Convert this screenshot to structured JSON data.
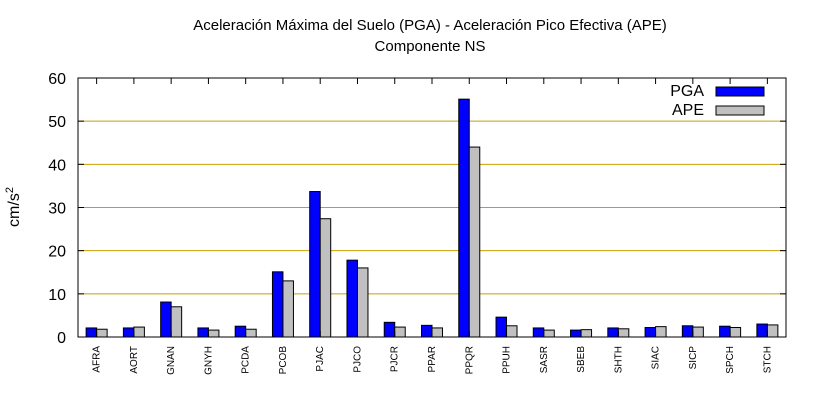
{
  "chart_data": {
    "type": "bar",
    "title": [
      "Aceleración Máxima del Suelo (PGA) -  Aceleración Pico Efectiva (APE)",
      "Componente NS"
    ],
    "ylabel": "cm/s",
    "ylabel_superscript": "2",
    "xlabel": "",
    "ylim": [
      0,
      60
    ],
    "yticks": [
      "0",
      "10",
      "20",
      "30",
      "40",
      "50",
      "60"
    ],
    "grid": "horizontal",
    "legend_position": "top-right",
    "categories": [
      "AFRA",
      "AORT",
      "GNAN",
      "GNYH",
      "PCDA",
      "PCOB",
      "PJAC",
      "PJCO",
      "PJCR",
      "PPAR",
      "PPQR",
      "PPUH",
      "SASR",
      "SBEB",
      "SHTH",
      "SIAC",
      "SICP",
      "SPCH",
      "STCH"
    ],
    "series": [
      {
        "name": "PGA",
        "color": "#0000ff",
        "values": [
          2.1,
          2.1,
          8.1,
          2.1,
          2.5,
          15.1,
          33.7,
          17.8,
          3.4,
          2.7,
          55.1,
          4.6,
          2.1,
          1.6,
          2.1,
          2.2,
          2.6,
          2.5,
          3.0
        ]
      },
      {
        "name": "APE",
        "color": "#c0c0c0",
        "values": [
          1.8,
          2.3,
          7.0,
          1.6,
          1.8,
          13.0,
          27.4,
          16.0,
          2.3,
          2.1,
          44.0,
          2.6,
          1.6,
          1.7,
          1.9,
          2.4,
          2.3,
          2.2,
          2.8
        ]
      }
    ]
  }
}
